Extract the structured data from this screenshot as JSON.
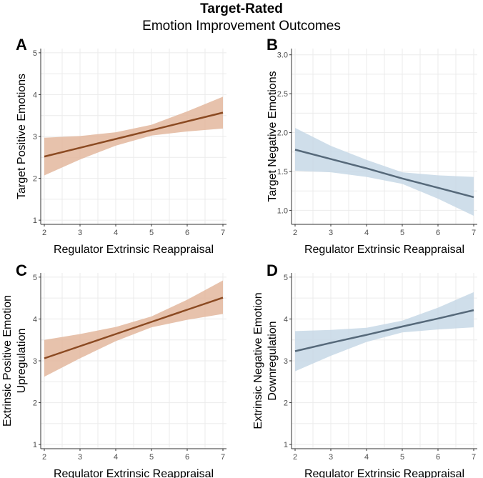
{
  "figure": {
    "title": "Target-Rated",
    "subtitle": "Emotion Improvement Outcomes"
  },
  "chart_data": [
    {
      "panel": "A",
      "type": "line",
      "xlabel": "Regulator Extrinsic Reappraisal",
      "ylabel": [
        "Target Positive Emotions"
      ],
      "xlim": [
        1.9,
        7.1
      ],
      "ylim": [
        0.9,
        5.1
      ],
      "xticks": [
        2,
        3,
        4,
        5,
        6,
        7
      ],
      "yticks": [
        1,
        2,
        3,
        4,
        5
      ],
      "ytick_labels": [
        "1",
        "2",
        "3",
        "4",
        "5"
      ],
      "grid": true,
      "line_color": "#8b4a22",
      "band_color": "#e3b79e",
      "series": [
        {
          "x": [
            2,
            3,
            4,
            5,
            6,
            7
          ],
          "y": [
            2.52,
            2.73,
            2.94,
            3.15,
            3.36,
            3.57
          ],
          "lower": [
            2.07,
            2.45,
            2.78,
            3.02,
            3.12,
            3.19
          ],
          "upper": [
            2.97,
            3.01,
            3.1,
            3.28,
            3.6,
            3.95
          ]
        }
      ]
    },
    {
      "panel": "B",
      "type": "line",
      "xlabel": "Regulator Extrinsic Reappraisal",
      "ylabel": [
        "Target Negative Emotions"
      ],
      "xlim": [
        1.9,
        7.1
      ],
      "ylim": [
        0.82,
        3.08
      ],
      "xticks": [
        2,
        3,
        4,
        5,
        6,
        7
      ],
      "yticks": [
        1.0,
        1.5,
        2.0,
        2.5,
        3.0
      ],
      "ytick_labels": [
        "1.0",
        "1.5",
        "2.0",
        "2.5",
        "3.0"
      ],
      "grid": true,
      "line_color": "#56697a",
      "band_color": "#c7d8e6",
      "series": [
        {
          "x": [
            2,
            3,
            4,
            5,
            6,
            7
          ],
          "y": [
            1.78,
            1.66,
            1.54,
            1.41,
            1.29,
            1.17
          ],
          "lower": [
            1.51,
            1.49,
            1.43,
            1.34,
            1.15,
            0.93
          ],
          "upper": [
            2.06,
            1.83,
            1.65,
            1.49,
            1.45,
            1.43
          ]
        }
      ]
    },
    {
      "panel": "C",
      "type": "line",
      "xlabel": "Regulator Extrinsic Reappraisal",
      "ylabel": [
        "Extrinsic Positive Emotion",
        "Upregulation"
      ],
      "xlim": [
        1.9,
        7.1
      ],
      "ylim": [
        0.9,
        5.1
      ],
      "xticks": [
        2,
        3,
        4,
        5,
        6,
        7
      ],
      "yticks": [
        1,
        2,
        3,
        4,
        5
      ],
      "ytick_labels": [
        "1",
        "2",
        "3",
        "4",
        "5"
      ],
      "grid": true,
      "line_color": "#8b4a22",
      "band_color": "#e3b79e",
      "series": [
        {
          "x": [
            2,
            3,
            4,
            5,
            6,
            7
          ],
          "y": [
            3.06,
            3.35,
            3.64,
            3.93,
            4.22,
            4.51
          ],
          "lower": [
            2.62,
            3.06,
            3.47,
            3.8,
            3.98,
            4.12
          ],
          "upper": [
            3.5,
            3.64,
            3.81,
            4.06,
            4.46,
            4.92
          ]
        }
      ]
    },
    {
      "panel": "D",
      "type": "line",
      "xlabel": "Regulator Extrinsic Reappraisal",
      "ylabel": [
        "Extrinsic Negative Emotion",
        "Downregulation"
      ],
      "xlim": [
        1.9,
        7.1
      ],
      "ylim": [
        0.9,
        5.1
      ],
      "xticks": [
        2,
        3,
        4,
        5,
        6,
        7
      ],
      "yticks": [
        1,
        2,
        3,
        4,
        5
      ],
      "ytick_labels": [
        "1",
        "2",
        "3",
        "4",
        "5"
      ],
      "grid": true,
      "line_color": "#56697a",
      "band_color": "#c7d8e6",
      "series": [
        {
          "x": [
            2,
            3,
            4,
            5,
            6,
            7
          ],
          "y": [
            3.23,
            3.43,
            3.62,
            3.82,
            4.01,
            4.21
          ],
          "lower": [
            2.75,
            3.12,
            3.45,
            3.68,
            3.75,
            3.8
          ],
          "upper": [
            3.71,
            3.74,
            3.79,
            3.96,
            4.27,
            4.64
          ]
        }
      ]
    }
  ]
}
